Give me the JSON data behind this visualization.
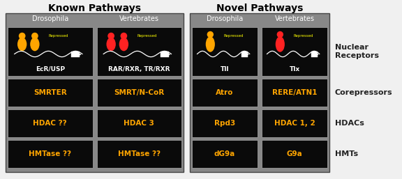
{
  "title_left": "Known Pathways",
  "title_right": "Novel Pathways",
  "bg_color": "#f0f0f0",
  "panel_bg": "#888888",
  "cell_bg": "#000000",
  "orange_text": "#FFA500",
  "white_text": "#ffffff",
  "label_text_color": "#333333",
  "left_panel": {
    "col_headers": [
      "Drosophila",
      "Vertebrates"
    ],
    "rows": [
      [
        "EcR/USP",
        "RAR/RXR, TR/RXR"
      ],
      [
        "SMRTER",
        "SMRT/N-CoR"
      ],
      [
        "HDAC ??",
        "HDAC 3"
      ],
      [
        "HMTase ??",
        "HMTase ??"
      ]
    ],
    "row_colors": [
      [
        "white",
        "white"
      ],
      [
        "orange",
        "orange"
      ],
      [
        "orange",
        "orange"
      ],
      [
        "orange",
        "orange"
      ]
    ]
  },
  "right_panel": {
    "col_headers": [
      "Drosophila",
      "Vertebrates"
    ],
    "rows": [
      [
        "Tll",
        "Tlx"
      ],
      [
        "Atro",
        "RERE/ATN1"
      ],
      [
        "Rpd3",
        "HDAC 1, 2"
      ],
      [
        "dG9a",
        "G9a"
      ]
    ],
    "row_colors": [
      [
        "white",
        "white"
      ],
      [
        "orange",
        "orange"
      ],
      [
        "orange",
        "orange"
      ],
      [
        "orange",
        "orange"
      ]
    ]
  },
  "row_labels": [
    "Nuclear\nReceptors",
    "Corepressors",
    "HDACs",
    "HMTs"
  ]
}
